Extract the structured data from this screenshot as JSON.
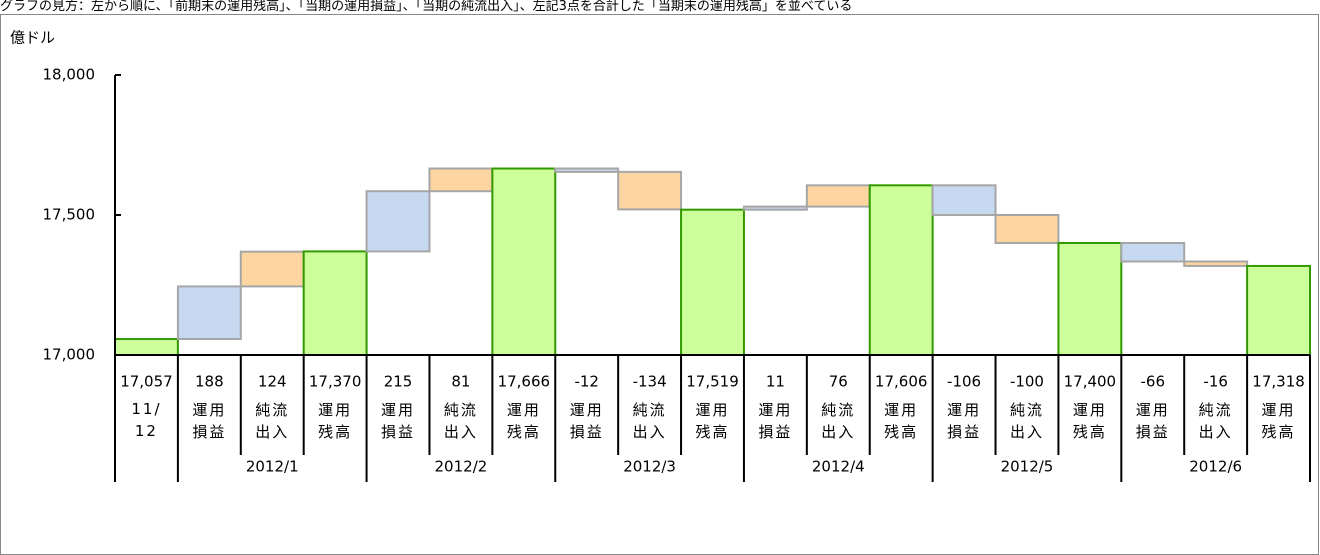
{
  "chart_data": {
    "type": "waterfall",
    "subtitle": "グラフの見方：左から順に、「前期末の運用残高」、「当期の運用損益」、「当期の純流出入」、左記3点を合計した「当期末の運用残高」を並べている",
    "y_label": "億ドル",
    "categories": [
      "11/12",
      "運用損益",
      "純流出入",
      "運用残高",
      "運用損益",
      "純流出入",
      "運用残高",
      "運用損益",
      "純流出入",
      "運用残高",
      "運用損益",
      "純流出入",
      "運用残高",
      "運用損益",
      "純流出入",
      "運用残高",
      "運用損益",
      "純流出入",
      "運用残高"
    ],
    "groups": [
      "2012/1",
      "2012/2",
      "2012/3",
      "2012/4",
      "2012/5",
      "2012/6"
    ],
    "values": [
      17057,
      188,
      124,
      17370,
      215,
      81,
      17666,
      -12,
      -134,
      17519,
      11,
      76,
      17606,
      -106,
      -100,
      17400,
      -66,
      -16,
      17318
    ],
    "value_labels": [
      "17,057",
      "188",
      "124",
      "17,370",
      "215",
      "81",
      "17,666",
      "-12",
      "-134",
      "17,519",
      "11",
      "76",
      "17,606",
      "-106",
      "-100",
      "17,400",
      "-66",
      "-16",
      "17,318"
    ],
    "colors": [
      "#ccff99",
      "#c6d9f1",
      "#fcd5a0",
      "#ccff99",
      "#c6d9f1",
      "#fcd5a0",
      "#ccff99",
      "#c6d9f1",
      "#fcd5a0",
      "#ccff99",
      "#c6d9f1",
      "#fcd5a0",
      "#ccff99",
      "#c6d9f1",
      "#fcd5a0",
      "#ccff99",
      "#c6d9f1",
      "#fcd5a0",
      "#ccff99"
    ],
    "total_color": "#ccff99",
    "ylim": [
      17000,
      18000
    ],
    "yticks": [
      {
        "value": 17000,
        "label": "17,000"
      },
      {
        "value": 17500,
        "label": "17,500"
      },
      {
        "value": 18000,
        "label": "18,000"
      }
    ]
  }
}
